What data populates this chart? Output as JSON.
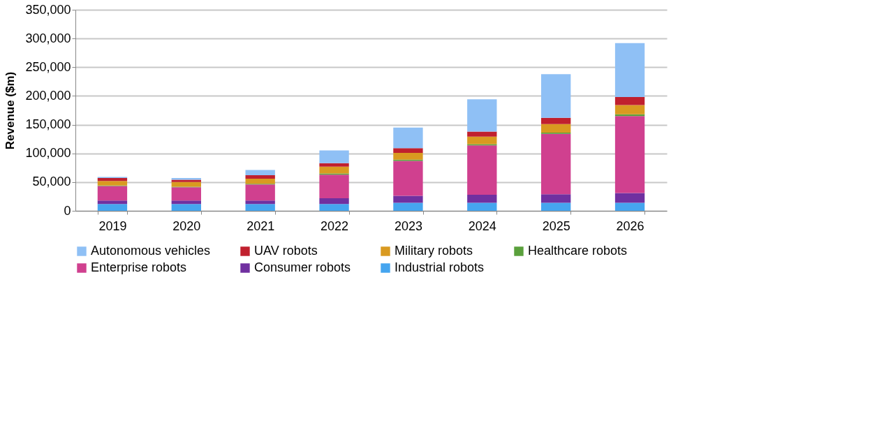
{
  "chart_data": {
    "type": "bar",
    "stacked": true,
    "ylabel": "Revenue ($m)",
    "categories": [
      "2019",
      "2020",
      "2021",
      "2022",
      "2023",
      "2024",
      "2025",
      "2026"
    ],
    "series": [
      {
        "name": "Industrial robots",
        "color": "#45a5ef",
        "values": [
          12000,
          12000,
          12000,
          12000,
          14000,
          14000,
          14000,
          14000
        ]
      },
      {
        "name": "Consumer robots",
        "color": "#7030a0",
        "values": [
          6000,
          6000,
          6000,
          10000,
          12000,
          14000,
          15000,
          17000
        ]
      },
      {
        "name": "Enterprise robots",
        "color": "#d0408f",
        "values": [
          25000,
          23000,
          28000,
          41000,
          61000,
          86000,
          105000,
          134000
        ]
      },
      {
        "name": "Healthcare robots",
        "color": "#5aa03c",
        "values": [
          1000,
          1000,
          1000,
          2000,
          2000,
          2000,
          2000,
          3000
        ]
      },
      {
        "name": "Military robots",
        "color": "#d99a20",
        "values": [
          8000,
          8000,
          9000,
          12000,
          12000,
          13000,
          15000,
          16000
        ]
      },
      {
        "name": "UAV robots",
        "color": "#c0202e",
        "values": [
          5000,
          4000,
          6000,
          6000,
          8000,
          9000,
          11000,
          14000
        ]
      },
      {
        "name": "Autonomous vehicles",
        "color": "#8fc0f5",
        "values": [
          2000,
          3000,
          9000,
          22000,
          36000,
          56000,
          76000,
          94000
        ]
      }
    ],
    "ylim": [
      0,
      350000
    ],
    "yticks": [
      {
        "value": 0,
        "label": "0"
      },
      {
        "value": 50000,
        "label": "50,000"
      },
      {
        "value": 100000,
        "label": "100,000"
      },
      {
        "value": 150000,
        "label": "150,000"
      },
      {
        "value": 200000,
        "label": "200,000"
      },
      {
        "value": 250000,
        "label": "250,000"
      },
      {
        "value": 300000,
        "label": "300,000"
      },
      {
        "value": 350000,
        "label": "350,000"
      }
    ],
    "grid": "y",
    "legend": "bottom"
  }
}
